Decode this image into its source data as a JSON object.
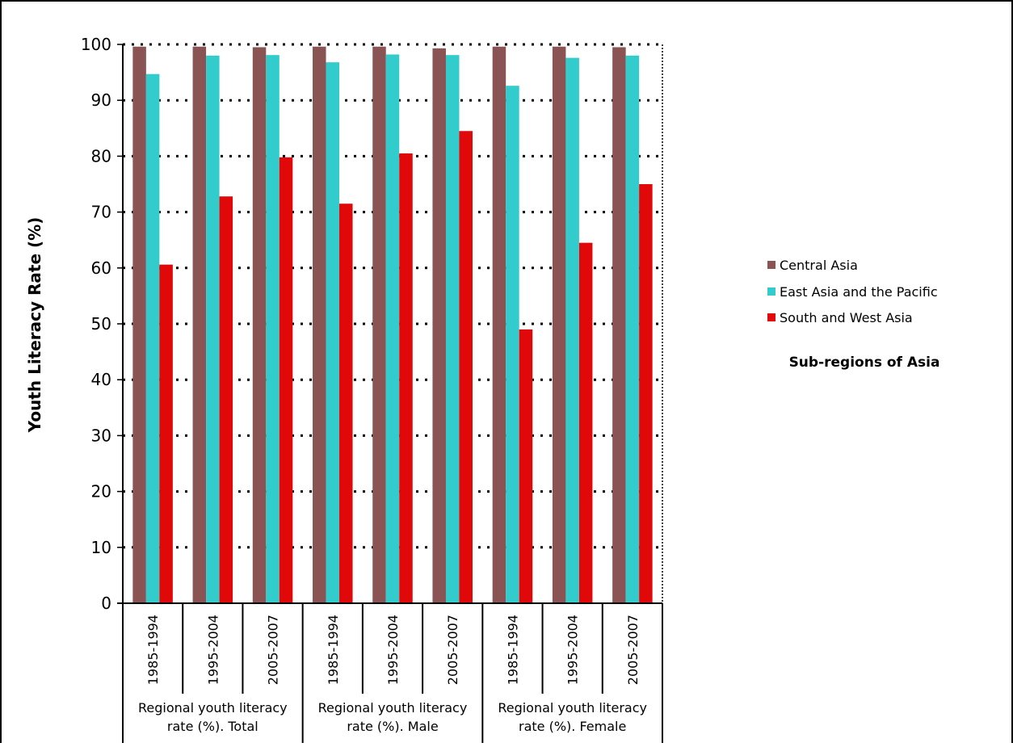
{
  "chart_data": {
    "type": "bar",
    "ylabel": "Youth Literacy Rate (%)",
    "ylim": [
      0,
      100
    ],
    "yticks": [
      "0",
      "10",
      "20",
      "30",
      "40",
      "50",
      "60",
      "70",
      "80",
      "90",
      "100"
    ],
    "grid": true,
    "legend_position": "right",
    "legend_title": "Sub-regions of Asia",
    "groups": [
      {
        "label_line1": "Regional youth literacy",
        "label_line2": "rate (%). Total"
      },
      {
        "label_line1": "Regional youth literacy",
        "label_line2": "rate (%). Male"
      },
      {
        "label_line1": "Regional youth literacy",
        "label_line2": "rate (%). Female"
      }
    ],
    "categories": [
      "1985-1994",
      "1995-2004",
      "2005-2007",
      "1985-1994",
      "1995-2004",
      "2005-2007",
      "1985-1994",
      "1995-2004",
      "2005-2007"
    ],
    "series": [
      {
        "name": "Central Asia",
        "color": "#8B5454",
        "values": [
          99.6,
          99.6,
          99.5,
          99.6,
          99.6,
          99.3,
          99.6,
          99.6,
          99.5
        ]
      },
      {
        "name": "East Asia and the Pacific",
        "color": "#33CCCC",
        "values": [
          94.7,
          98.0,
          98.1,
          96.8,
          98.2,
          98.1,
          92.6,
          97.6,
          98.0
        ]
      },
      {
        "name": "South and West Asia",
        "color": "#E00808",
        "values": [
          60.6,
          72.8,
          79.8,
          71.5,
          80.5,
          84.5,
          49.0,
          64.5,
          75.0
        ]
      }
    ]
  }
}
